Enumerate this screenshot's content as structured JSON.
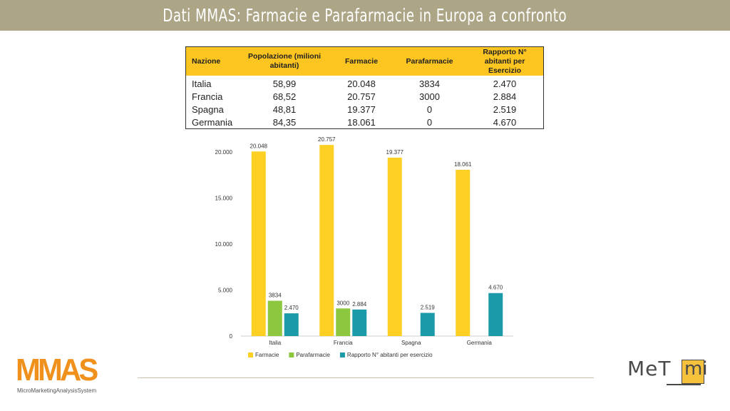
{
  "header": {
    "title": "Dati MMAS: Farmacie e Parafarmacie in Europa a confronto"
  },
  "table": {
    "headers": [
      "Nazione",
      "Popolazione (milioni abitanti)",
      "Farmacie",
      "Parafarmacie",
      "Rapporto N° abitanti per Esercizio"
    ],
    "rows": [
      [
        "Italia",
        "58,99",
        "20.048",
        "3834",
        "2.470"
      ],
      [
        "Francia",
        "68,52",
        "20.757",
        "3000",
        "2.884"
      ],
      [
        "Spagna",
        "48,81",
        "19.377",
        "0",
        "2.519"
      ],
      [
        "Germania",
        "84,35",
        "18.061",
        "0",
        "4.670"
      ]
    ]
  },
  "chart_data": {
    "type": "bar",
    "categories": [
      "Italia",
      "Francia",
      "Spagna",
      "Germania"
    ],
    "series": [
      {
        "name": "Farmacie",
        "color": "#fdd023",
        "values": [
          20048,
          20757,
          19377,
          18061
        ],
        "labels": [
          "20.048",
          "20.757",
          "19.377",
          "18.061"
        ]
      },
      {
        "name": "Parafarmacie",
        "color": "#8dc63f",
        "values": [
          3834,
          3000,
          0,
          0
        ],
        "labels": [
          "3834",
          "3000",
          "",
          ""
        ]
      },
      {
        "name": "Rapporto N° abitanti per esercizio",
        "color": "#1b9aaa",
        "values": [
          2470,
          2884,
          2519,
          4670
        ],
        "labels": [
          "2.470",
          "2.884",
          "2.519",
          "4.670"
        ]
      }
    ],
    "yticks": [
      0,
      5000,
      10000,
      15000,
      20000
    ],
    "ytick_labels": [
      "0",
      "5.000",
      "10.000",
      "15.000",
      "20.000"
    ],
    "ylim": [
      0,
      21000
    ],
    "legend_position": "bottom-left"
  },
  "logos": {
    "left_mark": "MMAS",
    "left_sub": "MicroMarketingAnalysisSystem",
    "right_met": "MeT",
    "right_mi": "mi"
  }
}
